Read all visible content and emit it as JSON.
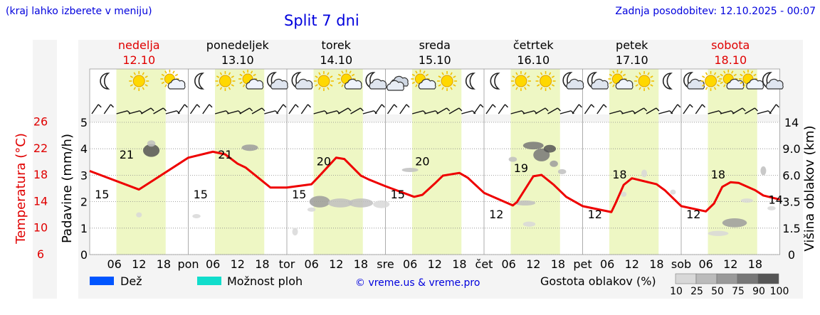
{
  "header": {
    "hint": "(kraj lahko izberete v meniju)",
    "title": "Split 7 dni",
    "updated_label": "Zadnja posodobitev: 12.10.2025 - 00:07"
  },
  "days": [
    {
      "name": "nedelja",
      "date": "12.10",
      "abbr": "",
      "weekend": true
    },
    {
      "name": "ponedeljek",
      "date": "13.10",
      "abbr": "pon",
      "weekend": false
    },
    {
      "name": "torek",
      "date": "14.10",
      "abbr": "tor",
      "weekend": false
    },
    {
      "name": "sreda",
      "date": "15.10",
      "abbr": "sre",
      "weekend": false
    },
    {
      "name": "četrtek",
      "date": "16.10",
      "abbr": "čet",
      "weekend": false
    },
    {
      "name": "petek",
      "date": "17.10",
      "abbr": "pet",
      "weekend": false
    },
    {
      "name": "sobota",
      "date": "18.10",
      "abbr": "sob",
      "weekend": true
    }
  ],
  "hour_ticks": [
    "06",
    "12",
    "18"
  ],
  "weather_icons": [
    [
      "moon",
      "sun",
      "sun-cloud"
    ],
    [
      "moon",
      "sun",
      "sun-cloud",
      "moon-cloud"
    ],
    [
      "moon-cloud",
      "sun",
      "sun-cloud",
      "moon-cloud"
    ],
    [
      "cloud",
      "sun-cloud",
      "sun",
      "moon"
    ],
    [
      "moon",
      "sun",
      "sun",
      "moon-cloud"
    ],
    [
      "moon-cloud",
      "sun-cloud",
      "sun",
      "moon"
    ],
    [
      "moon-cloud",
      "sun",
      "sun-cloud",
      "sun-cloud",
      "moon-cloud"
    ]
  ],
  "chart_data": {
    "type": "line",
    "title": "Split 7 dni",
    "left_axes": {
      "temperature": {
        "label": "Temperatura (°C)",
        "ticks": [
          6,
          10,
          14,
          18,
          22,
          26
        ],
        "color": "#e00000"
      },
      "precipitation": {
        "label": "Padavine (mm/h)",
        "ticks": [
          0,
          1,
          2,
          3,
          4,
          5
        ],
        "ylim": [
          0,
          5
        ]
      }
    },
    "right_axis": {
      "label": "Višina oblakov (km)",
      "ticks": [
        "0",
        "1.5",
        "3.5",
        "6.0",
        "9.0",
        "14"
      ]
    },
    "temperature_series": {
      "name": "Temperatura",
      "color": "#ee0000",
      "x_hours": [
        0,
        12,
        24,
        30,
        33,
        36,
        38,
        42,
        44,
        48,
        54,
        56,
        60,
        62,
        66,
        68,
        72,
        79,
        81,
        84,
        86,
        90,
        92,
        96,
        103,
        104,
        108,
        110,
        113,
        116,
        120,
        127,
        128,
        130,
        132,
        134,
        138,
        140,
        144,
        150,
        152,
        154,
        156,
        158,
        162,
        164,
        168
      ],
      "temps": [
        18.5,
        15.7,
        20.5,
        21.4,
        21.0,
        19.6,
        19.0,
        17.0,
        16.0,
        16.0,
        16.5,
        17.8,
        20.5,
        20.3,
        17.8,
        17.2,
        16.2,
        14.6,
        14.9,
        16.6,
        17.8,
        18.2,
        17.5,
        15.2,
        13.3,
        13.8,
        17.7,
        17.9,
        16.4,
        14.6,
        13.2,
        12.3,
        13.6,
        16.4,
        17.4,
        17.1,
        16.5,
        15.6,
        13.2,
        12.4,
        13.6,
        16.1,
        16.8,
        16.7,
        15.6,
        14.8,
        14.2
      ],
      "labels": [
        {
          "hour": 3,
          "value": "15"
        },
        {
          "hour": 9,
          "value": "21"
        },
        {
          "hour": 27,
          "value": "15"
        },
        {
          "hour": 33,
          "value": "21"
        },
        {
          "hour": 51,
          "value": "15"
        },
        {
          "hour": 57,
          "value": "20"
        },
        {
          "hour": 75,
          "value": "15"
        },
        {
          "hour": 81,
          "value": "20"
        },
        {
          "hour": 99,
          "value": "12"
        },
        {
          "hour": 105,
          "value": "19"
        },
        {
          "hour": 123,
          "value": "12"
        },
        {
          "hour": 129,
          "value": "18"
        },
        {
          "hour": 147,
          "value": "12"
        },
        {
          "hour": 153,
          "value": "18"
        },
        {
          "hour": 167,
          "value": "14"
        }
      ]
    },
    "cloud_blobs": [
      {
        "hour": 15,
        "km": 8.8,
        "w_h": 2,
        "h_km": 1.0,
        "density": 90
      },
      {
        "hour": 15,
        "km": 10.0,
        "w_h": 1,
        "h_km": 0.5,
        "density": 25
      },
      {
        "hour": 39,
        "km": 9.2,
        "w_h": 2,
        "h_km": 0.5,
        "density": 50
      },
      {
        "hour": 56,
        "km": 3.5,
        "w_h": 2.5,
        "h_km": 0.9,
        "density": 50
      },
      {
        "hour": 61,
        "km": 3.4,
        "w_h": 3,
        "h_km": 0.7,
        "density": 25
      },
      {
        "hour": 66,
        "km": 3.4,
        "w_h": 3,
        "h_km": 0.7,
        "density": 25
      },
      {
        "hour": 71,
        "km": 3.3,
        "w_h": 2,
        "h_km": 0.6,
        "density": 10
      },
      {
        "hour": 54,
        "km": 2.9,
        "w_h": 1,
        "h_km": 0.3,
        "density": 10
      },
      {
        "hour": 78,
        "km": 6.6,
        "w_h": 2,
        "h_km": 0.3,
        "density": 25
      },
      {
        "hour": 103,
        "km": 7.8,
        "w_h": 1,
        "h_km": 0.4,
        "density": 25
      },
      {
        "hour": 108,
        "km": 9.6,
        "w_h": 2.5,
        "h_km": 0.6,
        "density": 75
      },
      {
        "hour": 110,
        "km": 8.3,
        "w_h": 2,
        "h_km": 1.0,
        "density": 75
      },
      {
        "hour": 112,
        "km": 9.0,
        "w_h": 1.5,
        "h_km": 0.6,
        "density": 90
      },
      {
        "hour": 113,
        "km": 7.3,
        "w_h": 1,
        "h_km": 0.5,
        "density": 50
      },
      {
        "hour": 115,
        "km": 6.4,
        "w_h": 1,
        "h_km": 0.4,
        "density": 25
      },
      {
        "hour": 106,
        "km": 3.4,
        "w_h": 2.5,
        "h_km": 0.4,
        "density": 25
      },
      {
        "hour": 107,
        "km": 1.8,
        "w_h": 1.5,
        "h_km": 0.4,
        "density": 10
      },
      {
        "hour": 130,
        "km": 4.2,
        "w_h": 0.5,
        "h_km": 0.4,
        "density": 10
      },
      {
        "hour": 135,
        "km": 6.2,
        "w_h": 0.5,
        "h_km": 0.6,
        "density": 10
      },
      {
        "hour": 142,
        "km": 4.4,
        "w_h": 0.5,
        "h_km": 0.4,
        "density": 10
      },
      {
        "hour": 160,
        "km": 3.6,
        "w_h": 1.5,
        "h_km": 0.3,
        "density": 10
      },
      {
        "hour": 157,
        "km": 1.9,
        "w_h": 3,
        "h_km": 0.7,
        "density": 50
      },
      {
        "hour": 153,
        "km": 1.2,
        "w_h": 2.5,
        "h_km": 0.4,
        "density": 10
      },
      {
        "hour": 164,
        "km": 6.5,
        "w_h": 0.5,
        "h_km": 0.7,
        "density": 25
      },
      {
        "hour": 166,
        "km": 3.0,
        "w_h": 1,
        "h_km": 0.3,
        "density": 10
      },
      {
        "hour": 26,
        "km": 2.4,
        "w_h": 1,
        "h_km": 0.2,
        "density": 10
      },
      {
        "hour": 12,
        "km": 2.5,
        "w_h": 0.5,
        "h_km": 0.4,
        "density": 10
      },
      {
        "hour": 50,
        "km": 1.3,
        "w_h": 0.5,
        "h_km": 0.6,
        "density": 10
      }
    ],
    "legend": [
      {
        "label": "Dež",
        "color": "#0055ff"
      },
      {
        "label": "Možnost ploh",
        "color": "#11ddcc"
      }
    ],
    "credit": "© vreme.us & vreme.pro",
    "cloud_density": {
      "label": "Gostota oblakov (%)",
      "steps": [
        "10",
        "25",
        "50",
        "75",
        "90",
        "100"
      ],
      "colors": [
        "#d8d8d8",
        "#bbbbbb",
        "#999999",
        "#777777",
        "#555555"
      ]
    }
  }
}
